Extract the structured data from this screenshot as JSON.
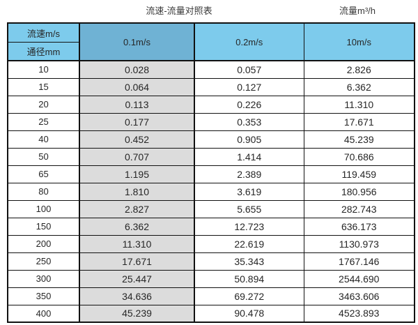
{
  "titles": {
    "left": "流速-流量对照表",
    "right": "流量m³/h"
  },
  "table": {
    "corner_top": "流速m/s",
    "corner_bottom": "通径mm",
    "velocity_headers": [
      "0.1m/s",
      "0.2m/s",
      "10m/s"
    ],
    "rows": [
      {
        "diameter": "10",
        "values": [
          "0.028",
          "0.057",
          "2.826"
        ]
      },
      {
        "diameter": "15",
        "values": [
          "0.064",
          "0.127",
          "6.362"
        ]
      },
      {
        "diameter": "20",
        "values": [
          "0.113",
          "0.226",
          "11.310"
        ]
      },
      {
        "diameter": "25",
        "values": [
          "0.177",
          "0.353",
          "17.671"
        ]
      },
      {
        "diameter": "40",
        "values": [
          "0.452",
          "0.905",
          "45.239"
        ]
      },
      {
        "diameter": "50",
        "values": [
          "0.707",
          "1.414",
          "70.686"
        ]
      },
      {
        "diameter": "65",
        "values": [
          "1.195",
          "2.389",
          "119.459"
        ]
      },
      {
        "diameter": "80",
        "values": [
          "1.810",
          "3.619",
          "180.956"
        ]
      },
      {
        "diameter": "100",
        "values": [
          "2.827",
          "5.655",
          "282.743"
        ]
      },
      {
        "diameter": "150",
        "values": [
          "6.362",
          "12.723",
          "636.173"
        ]
      },
      {
        "diameter": "200",
        "values": [
          "11.310",
          "22.619",
          "1130.973"
        ]
      },
      {
        "diameter": "250",
        "values": [
          "17.671",
          "35.343",
          "1767.146"
        ]
      },
      {
        "diameter": "300",
        "values": [
          "25.447",
          "50.894",
          "2544.690"
        ]
      },
      {
        "diameter": "350",
        "values": [
          "34.636",
          "69.272",
          "3463.606"
        ]
      },
      {
        "diameter": "400",
        "values": [
          "45.239",
          "90.478",
          "4523.893"
        ]
      }
    ]
  },
  "colors": {
    "header_blue": "#7dcbec",
    "highlight_header_blue": "#6fb2d4",
    "highlight_column_gray": "#dcdcdc",
    "border": "#111111",
    "text": "#262626"
  },
  "chart_data": {
    "type": "table",
    "title": "流速-流量对照表",
    "unit_label": "流量m³/h",
    "row_axis_label": "通径mm",
    "col_axis_label": "流速m/s",
    "columns": [
      "0.1m/s",
      "0.2m/s",
      "10m/s"
    ],
    "diameters_mm": [
      10,
      15,
      20,
      25,
      40,
      50,
      65,
      80,
      100,
      150,
      200,
      250,
      300,
      350,
      400
    ],
    "flow_rates_m3h": [
      [
        0.028,
        0.057,
        2.826
      ],
      [
        0.064,
        0.127,
        6.362
      ],
      [
        0.113,
        0.226,
        11.31
      ],
      [
        0.177,
        0.353,
        17.671
      ],
      [
        0.452,
        0.905,
        45.239
      ],
      [
        0.707,
        1.414,
        70.686
      ],
      [
        1.195,
        2.389,
        119.459
      ],
      [
        1.81,
        3.619,
        180.956
      ],
      [
        2.827,
        5.655,
        282.743
      ],
      [
        6.362,
        12.723,
        636.173
      ],
      [
        11.31,
        22.619,
        1130.973
      ],
      [
        17.671,
        35.343,
        1767.146
      ],
      [
        25.447,
        50.894,
        2544.69
      ],
      [
        34.636,
        69.272,
        3463.606
      ],
      [
        45.239,
        90.478,
        4523.893
      ]
    ],
    "highlighted_column": "0.1m/s",
    "grid": true,
    "legend_position": "none"
  }
}
